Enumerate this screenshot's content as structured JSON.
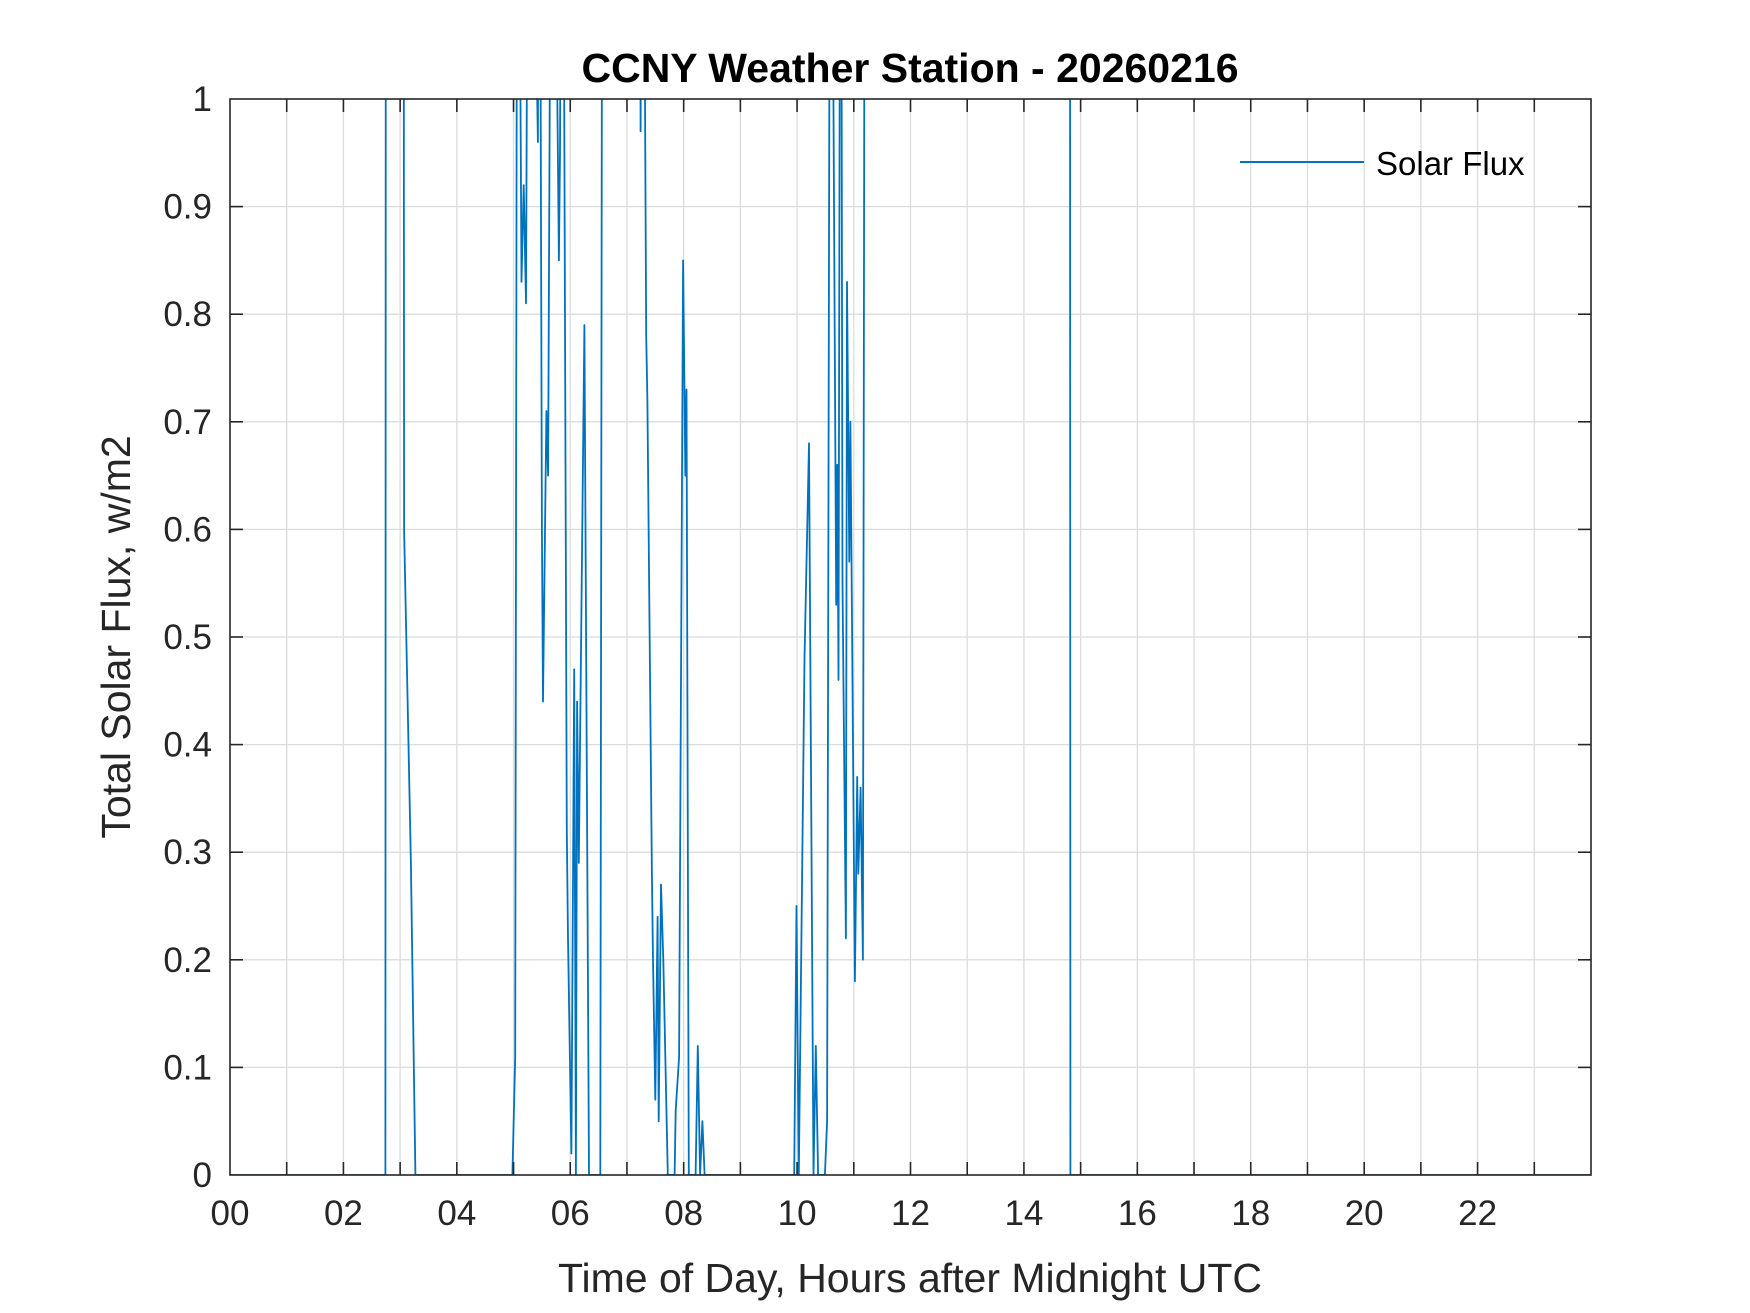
{
  "chart_data": {
    "type": "line",
    "title": "CCNY Weather Station - 20260216",
    "xlabel": "Time of Day, Hours after Midnight UTC",
    "ylabel": "Total Solar Flux, w/m2",
    "xlim": [
      0,
      24
    ],
    "ylim": [
      0,
      1
    ],
    "xticks": [
      0,
      2,
      4,
      6,
      8,
      10,
      12,
      14,
      16,
      18,
      20,
      22
    ],
    "xtick_labels": [
      "00",
      "02",
      "04",
      "06",
      "08",
      "10",
      "12",
      "14",
      "16",
      "18",
      "20",
      "22"
    ],
    "yticks": [
      0,
      0.1,
      0.2,
      0.3,
      0.4,
      0.5,
      0.6,
      0.7,
      0.8,
      0.9,
      1
    ],
    "ytick_labels": [
      "0",
      "0.1",
      "0.2",
      "0.3",
      "0.4",
      "0.5",
      "0.6",
      "0.7",
      "0.8",
      "0.9",
      "1"
    ],
    "grid": true,
    "legend": {
      "position": "top-right",
      "entries": [
        "Solar Flux"
      ]
    },
    "series": [
      {
        "name": "Solar Flux",
        "color": "#0072BD",
        "x": [
          0,
          2.74,
          2.75,
          3.06,
          3.07,
          3.19,
          3.27,
          4.98,
          5.03,
          5.07,
          5.14,
          5.18,
          5.22,
          5.27,
          5.43,
          5.45,
          5.5,
          5.52,
          5.58,
          5.61,
          5.68,
          5.8,
          5.82,
          5.86,
          5.94,
          5.96,
          6.02,
          6.07,
          6.1,
          6.12,
          6.15,
          6.25,
          6.33,
          6.53,
          6.57,
          7.22,
          7.24,
          7.27,
          7.34,
          7.36,
          7.44,
          7.46,
          7.5,
          7.54,
          7.56,
          7.6,
          7.64,
          7.72,
          7.84,
          7.86,
          7.92,
          7.99,
          8.03,
          8.05,
          8.09,
          8.21,
          8.25,
          8.29,
          8.33,
          8.37,
          9.95,
          9.99,
          10.03,
          10.13,
          10.21,
          10.29,
          10.33,
          10.37,
          10.49,
          10.53,
          10.59,
          10.69,
          10.71,
          10.73,
          10.77,
          10.8,
          10.86,
          10.88,
          10.92,
          10.94,
          11.02,
          11.06,
          11.08,
          11.12,
          11.16,
          11.2,
          14.81,
          14.82,
          24
        ],
        "y": [
          0,
          0,
          1.5,
          1.5,
          0.6,
          0.29,
          0,
          0,
          0.11,
          1.5,
          0.83,
          0.92,
          0.81,
          1.5,
          0.96,
          1.5,
          0.6,
          0.44,
          0.71,
          0.65,
          1.5,
          0.85,
          0.95,
          1.5,
          0.32,
          0.22,
          0.02,
          0.47,
          0.0,
          0.44,
          0.29,
          0.79,
          0,
          0,
          1.5,
          1.5,
          0.97,
          1.5,
          0.78,
          0.72,
          0.28,
          0.2,
          0.07,
          0.24,
          0.05,
          0.27,
          0.2,
          0,
          0,
          0.06,
          0.11,
          0.85,
          0.65,
          0.73,
          0,
          0,
          0.12,
          0,
          0.05,
          0,
          0,
          0.25,
          0,
          0.48,
          0.68,
          0,
          0.12,
          0,
          0,
          0.05,
          1.5,
          0.53,
          0.66,
          0.46,
          1.5,
          0.55,
          0.22,
          0.83,
          0.57,
          0.7,
          0.18,
          0.37,
          0.28,
          0.36,
          0.2,
          1.5,
          1.5,
          0,
          0
        ]
      }
    ]
  }
}
